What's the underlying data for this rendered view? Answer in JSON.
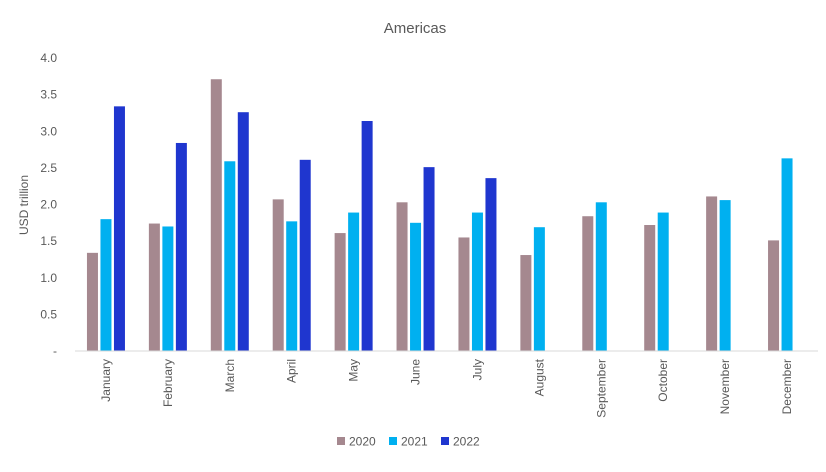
{
  "chart_data": {
    "type": "bar",
    "title": "Americas",
    "xlabel": "",
    "ylabel": "USD trillion",
    "ylim": [
      0,
      4.0
    ],
    "yticks": [
      "-",
      "0.5",
      "1.0",
      "1.5",
      "2.0",
      "2.5",
      "3.0",
      "3.5",
      "4.0"
    ],
    "categories": [
      "January",
      "February",
      "March",
      "April",
      "May",
      "June",
      "July",
      "August",
      "September",
      "October",
      "November",
      "December"
    ],
    "series": [
      {
        "name": "2020",
        "color": "#a5888f",
        "values": [
          1.34,
          1.74,
          3.71,
          2.07,
          1.61,
          2.03,
          1.55,
          1.31,
          1.84,
          1.72,
          2.11,
          1.51
        ]
      },
      {
        "name": "2021",
        "color": "#00b0f0",
        "values": [
          1.8,
          1.7,
          2.59,
          1.77,
          1.89,
          1.75,
          1.89,
          1.69,
          2.03,
          1.89,
          2.06,
          2.63
        ]
      },
      {
        "name": "2022",
        "color": "#1f36cf",
        "values": [
          3.34,
          2.84,
          3.26,
          2.61,
          3.14,
          2.51,
          2.36,
          null,
          null,
          null,
          null,
          null
        ]
      }
    ],
    "grid": false,
    "legend": "bottom"
  }
}
